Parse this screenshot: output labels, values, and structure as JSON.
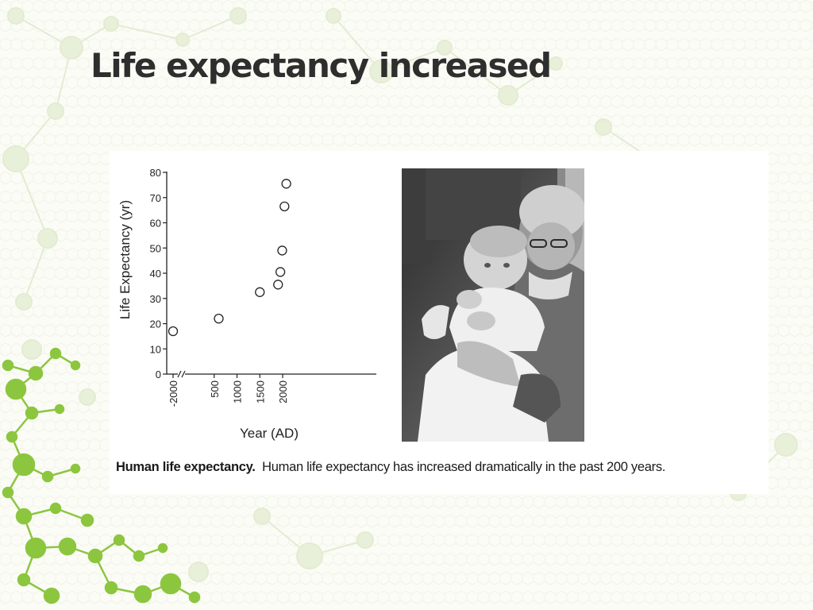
{
  "slide": {
    "title": "Life expectancy increased",
    "caption_bold": "Human life expectancy.",
    "caption_text": "Human life expectancy has increased dramatically in the past 200 years."
  },
  "photo": {
    "description_icon": "grandmother-holding-baby-photo"
  },
  "colors": {
    "title": "#2e2e2e",
    "background": "#fbfcf6",
    "molecule_green": "#8cc63f",
    "chart_ink": "#222222"
  },
  "chart_data": {
    "type": "scatter",
    "title": "",
    "xlabel": "Year (AD)",
    "ylabel": "Life Expectancy (yr)",
    "x_tick_labels": [
      "-2000",
      "500",
      "1000",
      "1500",
      "2000"
    ],
    "y_ticks": [
      0,
      10,
      20,
      30,
      40,
      50,
      60,
      70,
      80
    ],
    "ylim": [
      0,
      80
    ],
    "x_axis_break": true,
    "points": [
      {
        "x": -2000,
        "y": 17
      },
      {
        "x": 600,
        "y": 22
      },
      {
        "x": 1500,
        "y": 32.5
      },
      {
        "x": 1900,
        "y": 35.5
      },
      {
        "x": 1950,
        "y": 40.5
      },
      {
        "x": 1990,
        "y": 49
      },
      {
        "x": 2040,
        "y": 66.5
      },
      {
        "x": 2080,
        "y": 75.5
      }
    ],
    "grid": false,
    "legend": "none"
  }
}
